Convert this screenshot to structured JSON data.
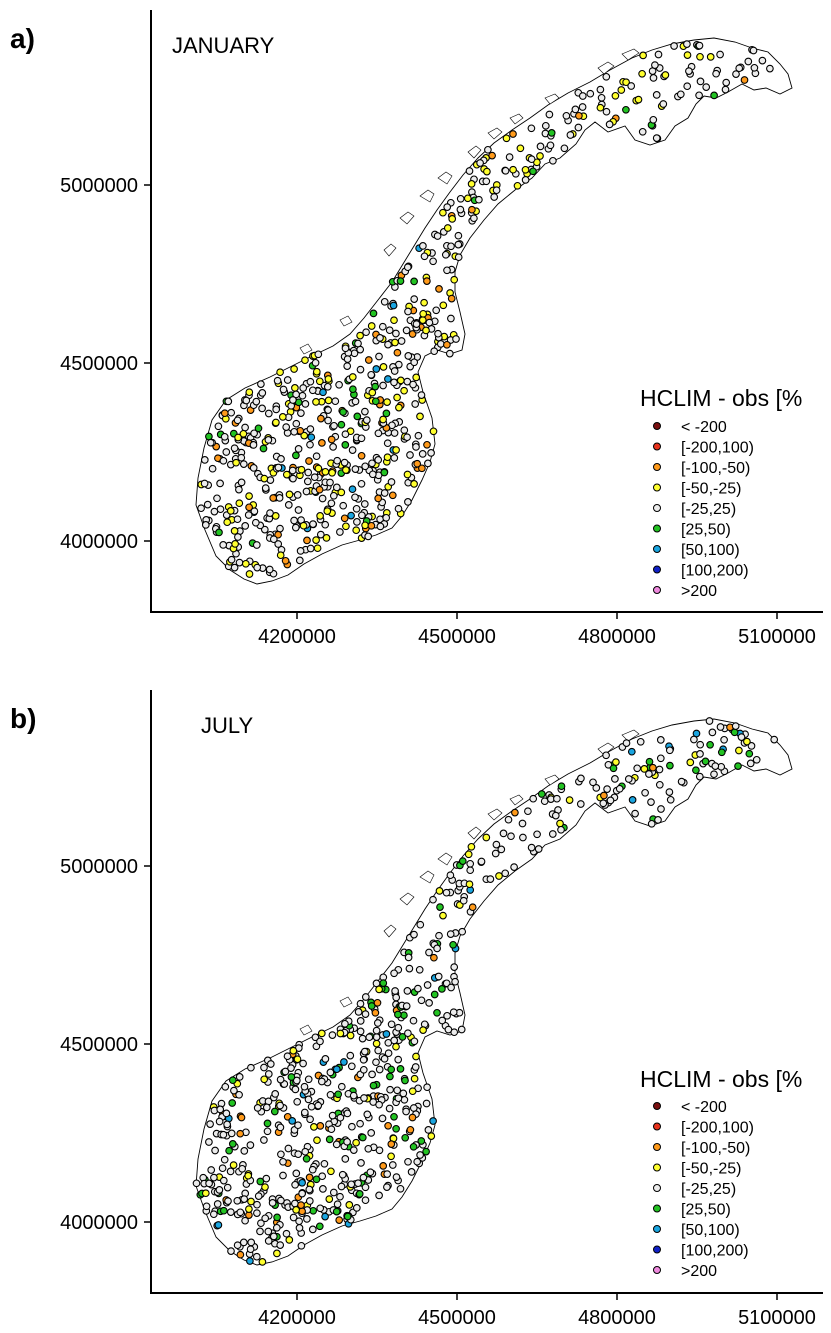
{
  "chart_data": [
    {
      "type": "scatter",
      "panel_letter": "a)",
      "title": "JANUARY",
      "xlabel": "",
      "ylabel": "",
      "x_ticks": [
        "4200000",
        "4500000",
        "4800000",
        "5100000"
      ],
      "y_ticks": [
        "4000000",
        "4500000",
        "5000000"
      ],
      "xlim": [
        4000000,
        5150000
      ],
      "ylim": [
        3800000,
        5480000
      ],
      "legend_title": "HCLIM - obs [%",
      "legend_position": "bottom-right",
      "category_distribution": {
        "[-100,-50)": 60,
        "[-50,-25)": 170,
        "[-25,25)": 460,
        "[25,50)": 40,
        "[50,100)": 12
      }
    },
    {
      "type": "scatter",
      "panel_letter": "b)",
      "title": "JULY",
      "xlabel": "",
      "ylabel": "",
      "x_ticks": [
        "4200000",
        "4500000",
        "4800000",
        "5100000"
      ],
      "y_ticks": [
        "4000000",
        "4500000",
        "5000000"
      ],
      "xlim": [
        4000000,
        5150000
      ],
      "ylim": [
        3800000,
        5480000
      ],
      "legend_title": "HCLIM - obs [%",
      "legend_position": "bottom-right",
      "category_distribution": {
        "[-100,-50)": 45,
        "[-50,-25)": 70,
        "[-25,25)": 520,
        "[25,50)": 90,
        "[50,100)": 22
      }
    }
  ],
  "legend": {
    "categories": [
      {
        "label": "< -200",
        "color": "#7a1010"
      },
      {
        "label": "[-200,100)",
        "color": "#e8321c"
      },
      {
        "label": "[-100,-50)",
        "color": "#ff9a1a"
      },
      {
        "label": "[-50,-25)",
        "color": "#ffff2e"
      },
      {
        "label": "[-25,25)",
        "color": "#ececec"
      },
      {
        "label": "[25,50)",
        "color": "#22c322"
      },
      {
        "label": "[50,100)",
        "color": "#1aa5e0"
      },
      {
        "label": "[100,200)",
        "color": "#1020c8"
      },
      {
        "label": ">200",
        "color": "#ee88dd"
      }
    ]
  }
}
